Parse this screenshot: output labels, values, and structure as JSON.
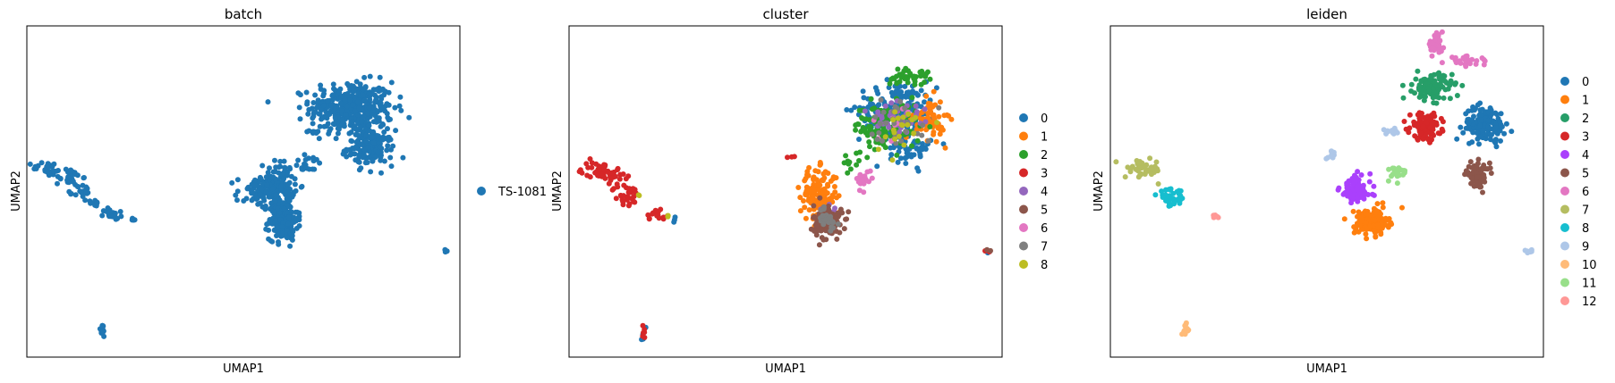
{
  "chart_data": [
    {
      "type": "scatter",
      "title": "batch",
      "xlabel": "UMAP1",
      "ylabel": "UMAP2",
      "grid": false,
      "legend_placement": "right",
      "legend": [
        {
          "label": "TS-1081",
          "color": "#1f77b4"
        }
      ],
      "series": [
        {
          "name": "TS-1081",
          "color": "#1f77b4",
          "clusters": [
            {
              "cx": 4.6,
              "cy": 8.9,
              "sx": 1.6,
              "sy": 0.9,
              "n": 380
            },
            {
              "cx": 5.4,
              "cy": 7.4,
              "sx": 0.9,
              "sy": 0.6,
              "n": 160
            },
            {
              "cx": 1.5,
              "cy": 6.0,
              "sx": 0.6,
              "sy": 0.8,
              "n": 110
            },
            {
              "cx": 0.7,
              "cy": 5.7,
              "sx": 0.9,
              "sy": 0.6,
              "n": 70
            },
            {
              "cx": 1.7,
              "cy": 4.7,
              "sx": 0.55,
              "sy": 0.7,
              "n": 200
            },
            {
              "cx": -8.3,
              "cy": 6.6,
              "sx": 0.6,
              "sy": 0.25,
              "n": 25
            },
            {
              "cx": -7.4,
              "cy": 6.3,
              "sx": 0.5,
              "sy": 0.3,
              "n": 25
            },
            {
              "cx": -6.8,
              "cy": 5.7,
              "sx": 0.35,
              "sy": 0.3,
              "n": 20
            },
            {
              "cx": -6.4,
              "cy": 5.3,
              "sx": 0.25,
              "sy": 0.2,
              "n": 12
            },
            {
              "cx": -5.5,
              "cy": 4.9,
              "sx": 0.4,
              "sy": 0.2,
              "n": 18
            },
            {
              "cx": -4.7,
              "cy": 4.7,
              "sx": 0.12,
              "sy": 0.08,
              "n": 5
            },
            {
              "cx": -6.0,
              "cy": 0.5,
              "sx": 0.12,
              "sy": 0.25,
              "n": 14
            },
            {
              "cx": 8.6,
              "cy": 3.5,
              "sx": 0.12,
              "sy": 0.05,
              "n": 7
            },
            {
              "cx": 2.8,
              "cy": 6.8,
              "sx": 0.6,
              "sy": 0.3,
              "n": 18
            },
            {
              "cx": 3.0,
              "cy": 8.0,
              "sx": 0.4,
              "sy": 0.05,
              "n": 8
            }
          ]
        }
      ]
    },
    {
      "type": "scatter",
      "title": "cluster",
      "xlabel": "UMAP1",
      "ylabel": "UMAP2",
      "grid": false,
      "legend_placement": "right",
      "legend": [
        {
          "label": "0",
          "color": "#1f77b4"
        },
        {
          "label": "1",
          "color": "#ff7f0e"
        },
        {
          "label": "2",
          "color": "#2ca02c"
        },
        {
          "label": "3",
          "color": "#d62728"
        },
        {
          "label": "4",
          "color": "#9467bd"
        },
        {
          "label": "5",
          "color": "#8c564b"
        },
        {
          "label": "6",
          "color": "#e377c2"
        },
        {
          "label": "7",
          "color": "#7f7f7f"
        },
        {
          "label": "8",
          "color": "#bcbd22"
        }
      ],
      "series": [
        {
          "name": "0",
          "color": "#1f77b4",
          "clusters": [
            {
              "cx": 4.8,
              "cy": 8.9,
              "sx": 1.5,
              "sy": 0.9,
              "n": 170
            },
            {
              "cx": 5.3,
              "cy": 7.4,
              "sx": 0.8,
              "sy": 0.6,
              "n": 60
            },
            {
              "cx": -6.0,
              "cy": 0.5,
              "sx": 0.12,
              "sy": 0.25,
              "n": 4
            },
            {
              "cx": 8.6,
              "cy": 3.5,
              "sx": 0.12,
              "sy": 0.05,
              "n": 2
            },
            {
              "cx": -4.7,
              "cy": 4.7,
              "sx": 0.1,
              "sy": 0.1,
              "n": 3
            }
          ]
        },
        {
          "name": "1",
          "color": "#ff7f0e",
          "clusters": [
            {
              "cx": 1.4,
              "cy": 5.6,
              "sx": 0.7,
              "sy": 0.9,
              "n": 150
            },
            {
              "cx": 6.1,
              "cy": 8.5,
              "sx": 0.6,
              "sy": 0.7,
              "n": 70
            }
          ]
        },
        {
          "name": "2",
          "color": "#2ca02c",
          "clusters": [
            {
              "cx": 4.3,
              "cy": 8.2,
              "sx": 1.3,
              "sy": 0.8,
              "n": 130
            },
            {
              "cx": 5.2,
              "cy": 10.1,
              "sx": 0.8,
              "sy": 0.3,
              "n": 40
            },
            {
              "cx": 2.8,
              "cy": 6.8,
              "sx": 0.6,
              "sy": 0.3,
              "n": 10
            }
          ]
        },
        {
          "name": "3",
          "color": "#d62728",
          "clusters": [
            {
              "cx": -7.8,
              "cy": 6.5,
              "sx": 0.8,
              "sy": 0.35,
              "n": 55
            },
            {
              "cx": -6.8,
              "cy": 5.6,
              "sx": 0.5,
              "sy": 0.4,
              "n": 30
            },
            {
              "cx": -5.5,
              "cy": 4.9,
              "sx": 0.4,
              "sy": 0.2,
              "n": 15
            },
            {
              "cx": -6.0,
              "cy": 0.5,
              "sx": 0.12,
              "sy": 0.2,
              "n": 6
            },
            {
              "cx": 8.6,
              "cy": 3.5,
              "sx": 0.12,
              "sy": 0.05,
              "n": 3
            },
            {
              "cx": 0.2,
              "cy": 7.1,
              "sx": 0.2,
              "sy": 0.2,
              "n": 3
            }
          ]
        },
        {
          "name": "4",
          "color": "#9467bd",
          "clusters": [
            {
              "cx": 4.8,
              "cy": 8.5,
              "sx": 1.3,
              "sy": 0.8,
              "n": 40
            },
            {
              "cx": 1.6,
              "cy": 4.9,
              "sx": 0.5,
              "sy": 0.5,
              "n": 10
            }
          ]
        },
        {
          "name": "5",
          "color": "#8c564b",
          "clusters": [
            {
              "cx": 1.8,
              "cy": 4.6,
              "sx": 0.55,
              "sy": 0.6,
              "n": 110
            },
            {
              "cx": 8.6,
              "cy": 3.5,
              "sx": 0.12,
              "sy": 0.05,
              "n": 2
            }
          ]
        },
        {
          "name": "6",
          "color": "#e377c2",
          "clusters": [
            {
              "cx": 3.3,
              "cy": 6.2,
              "sx": 0.35,
              "sy": 0.3,
              "n": 18
            },
            {
              "cx": 4.8,
              "cy": 8.3,
              "sx": 1.0,
              "sy": 0.7,
              "n": 10
            }
          ]
        },
        {
          "name": "7",
          "color": "#7f7f7f",
          "clusters": [
            {
              "cx": 4.9,
              "cy": 8.4,
              "sx": 1.2,
              "sy": 0.8,
              "n": 30
            },
            {
              "cx": 1.7,
              "cy": 4.7,
              "sx": 0.5,
              "sy": 0.5,
              "n": 25
            }
          ]
        },
        {
          "name": "8",
          "color": "#bcbd22",
          "clusters": [
            {
              "cx": 4.9,
              "cy": 8.1,
              "sx": 1.0,
              "sy": 0.8,
              "n": 20
            },
            {
              "cx": -6.3,
              "cy": 5.5,
              "sx": 0.2,
              "sy": 0.2,
              "n": 2
            },
            {
              "cx": -5.0,
              "cy": 4.8,
              "sx": 0.1,
              "sy": 0.1,
              "n": 2
            }
          ]
        }
      ]
    },
    {
      "type": "scatter",
      "title": "leiden",
      "xlabel": "UMAP1",
      "ylabel": "UMAP2",
      "grid": false,
      "legend_placement": "right",
      "legend": [
        {
          "label": "0",
          "color": "#1f77b4"
        },
        {
          "label": "1",
          "color": "#ff7f0e"
        },
        {
          "label": "2",
          "color": "#279e68"
        },
        {
          "label": "3",
          "color": "#d62728"
        },
        {
          "label": "4",
          "color": "#aa40fc"
        },
        {
          "label": "5",
          "color": "#8c564b"
        },
        {
          "label": "6",
          "color": "#e377c2"
        },
        {
          "label": "7",
          "color": "#b5bd61"
        },
        {
          "label": "8",
          "color": "#17becf"
        },
        {
          "label": "9",
          "color": "#aec7e8"
        },
        {
          "label": "10",
          "color": "#ffbb78"
        },
        {
          "label": "11",
          "color": "#98df8a"
        },
        {
          "label": "12",
          "color": "#ff9896"
        }
      ],
      "series": [
        {
          "name": "0",
          "color": "#1f77b4",
          "clusters": [
            {
              "cx": 6.7,
              "cy": 8.3,
              "sx": 0.8,
              "sy": 0.6,
              "n": 150
            }
          ]
        },
        {
          "name": "1",
          "color": "#ff7f0e",
          "clusters": [
            {
              "cx": 1.9,
              "cy": 4.6,
              "sx": 0.65,
              "sy": 0.45,
              "n": 170
            }
          ]
        },
        {
          "name": "2",
          "color": "#279e68",
          "clusters": [
            {
              "cx": 4.5,
              "cy": 9.7,
              "sx": 0.75,
              "sy": 0.45,
              "n": 120
            }
          ]
        },
        {
          "name": "3",
          "color": "#d62728",
          "clusters": [
            {
              "cx": 4.2,
              "cy": 8.2,
              "sx": 0.6,
              "sy": 0.45,
              "n": 110
            }
          ]
        },
        {
          "name": "4",
          "color": "#aa40fc",
          "clusters": [
            {
              "cx": 1.2,
              "cy": 5.8,
              "sx": 0.6,
              "sy": 0.5,
              "n": 110
            }
          ]
        },
        {
          "name": "5",
          "color": "#8c564b",
          "clusters": [
            {
              "cx": 6.4,
              "cy": 6.4,
              "sx": 0.45,
              "sy": 0.4,
              "n": 70
            }
          ]
        },
        {
          "name": "6",
          "color": "#e377c2",
          "clusters": [
            {
              "cx": 4.6,
              "cy": 11.3,
              "sx": 0.3,
              "sy": 0.3,
              "n": 40
            },
            {
              "cx": 6.0,
              "cy": 10.7,
              "sx": 0.8,
              "sy": 0.15,
              "n": 30
            }
          ]
        },
        {
          "name": "7",
          "color": "#b5bd61",
          "clusters": [
            {
              "cx": -7.8,
              "cy": 6.6,
              "sx": 0.7,
              "sy": 0.3,
              "n": 45
            }
          ]
        },
        {
          "name": "8",
          "color": "#17becf",
          "clusters": [
            {
              "cx": -6.6,
              "cy": 5.5,
              "sx": 0.55,
              "sy": 0.3,
              "n": 40
            }
          ]
        },
        {
          "name": "9",
          "color": "#aec7e8",
          "clusters": [
            {
              "cx": 2.8,
              "cy": 8.0,
              "sx": 0.4,
              "sy": 0.08,
              "n": 14
            },
            {
              "cx": 0.2,
              "cy": 7.1,
              "sx": 0.2,
              "sy": 0.2,
              "n": 10
            },
            {
              "cx": 8.6,
              "cy": 3.5,
              "sx": 0.12,
              "sy": 0.05,
              "n": 8
            }
          ]
        },
        {
          "name": "10",
          "color": "#ffbb78",
          "clusters": [
            {
              "cx": -6.0,
              "cy": 0.5,
              "sx": 0.12,
              "sy": 0.25,
              "n": 16
            }
          ]
        },
        {
          "name": "11",
          "color": "#98df8a",
          "clusters": [
            {
              "cx": 2.9,
              "cy": 6.5,
              "sx": 0.5,
              "sy": 0.3,
              "n": 18
            }
          ]
        },
        {
          "name": "12",
          "color": "#ff9896",
          "clusters": [
            {
              "cx": -4.7,
              "cy": 4.8,
              "sx": 0.12,
              "sy": 0.08,
              "n": 6
            }
          ]
        }
      ]
    }
  ]
}
